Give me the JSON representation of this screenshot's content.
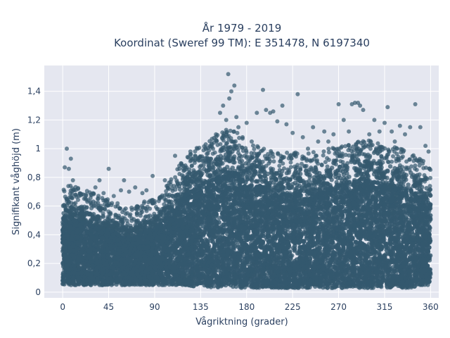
{
  "chart_data": {
    "type": "scatter",
    "title": "År 1979 - 2019",
    "subtitle": "Koordinat (Sweref 99 TM): E 351478, N 6197340",
    "xlabel": "Vågriktning (grader)",
    "ylabel": "Signifikant våghöjd (m)",
    "xlim": [
      -18,
      368
    ],
    "ylim": [
      -0.04,
      1.58
    ],
    "x_ticks": [
      0,
      45,
      90,
      135,
      180,
      225,
      270,
      315,
      360
    ],
    "x_tick_labels": [
      "0",
      "45",
      "90",
      "135",
      "180",
      "225",
      "270",
      "315",
      "360"
    ],
    "y_ticks": [
      0,
      0.2,
      0.4,
      0.6,
      0.8,
      1.0,
      1.2,
      1.4
    ],
    "y_tick_labels": [
      "0",
      "0,2",
      "0,4",
      "0,6",
      "0,8",
      "1",
      "1,2",
      "1,4"
    ],
    "grid": true,
    "colors": {
      "marker": "#34586e",
      "plot_bg": "#e5e7f0",
      "grid": "#ffffff",
      "text": "#2a3f5f"
    },
    "dense_band": {
      "x": [
        0,
        10,
        20,
        30,
        40,
        50,
        60,
        70,
        80,
        90,
        100,
        110,
        120,
        130,
        140,
        150,
        160,
        170,
        180,
        190,
        200,
        210,
        220,
        230,
        240,
        250,
        260,
        270,
        280,
        290,
        300,
        310,
        320,
        330,
        340,
        350,
        360
      ],
      "y_min": [
        0.05,
        0.05,
        0.05,
        0.05,
        0.05,
        0.05,
        0.05,
        0.05,
        0.05,
        0.05,
        0.05,
        0.05,
        0.05,
        0.04,
        0.04,
        0.03,
        0.03,
        0.03,
        0.03,
        0.03,
        0.03,
        0.03,
        0.03,
        0.03,
        0.03,
        0.03,
        0.03,
        0.03,
        0.03,
        0.03,
        0.03,
        0.03,
        0.03,
        0.03,
        0.03,
        0.05,
        0.05
      ],
      "y_max": [
        0.62,
        0.6,
        0.58,
        0.55,
        0.52,
        0.5,
        0.45,
        0.45,
        0.5,
        0.52,
        0.6,
        0.7,
        0.8,
        0.86,
        0.9,
        0.95,
        1.0,
        0.98,
        0.9,
        0.88,
        0.86,
        0.85,
        0.84,
        0.84,
        0.84,
        0.85,
        0.86,
        0.88,
        0.9,
        0.92,
        0.92,
        0.9,
        0.88,
        0.86,
        0.84,
        0.8,
        0.72
      ]
    },
    "outliers": [
      {
        "x": 2,
        "y": 0.87
      },
      {
        "x": 4,
        "y": 1.0
      },
      {
        "x": 6,
        "y": 0.86
      },
      {
        "x": 8,
        "y": 0.93
      },
      {
        "x": 10,
        "y": 0.78
      },
      {
        "x": 15,
        "y": 0.72
      },
      {
        "x": 20,
        "y": 0.68
      },
      {
        "x": 25,
        "y": 0.64
      },
      {
        "x": 32,
        "y": 0.73
      },
      {
        "x": 36,
        "y": 0.78
      },
      {
        "x": 40,
        "y": 0.69
      },
      {
        "x": 45,
        "y": 0.86
      },
      {
        "x": 50,
        "y": 0.67
      },
      {
        "x": 57,
        "y": 0.71
      },
      {
        "x": 60,
        "y": 0.78
      },
      {
        "x": 65,
        "y": 0.7
      },
      {
        "x": 71,
        "y": 0.73
      },
      {
        "x": 78,
        "y": 0.69
      },
      {
        "x": 82,
        "y": 0.71
      },
      {
        "x": 88,
        "y": 0.81
      },
      {
        "x": 95,
        "y": 0.66
      },
      {
        "x": 100,
        "y": 0.78
      },
      {
        "x": 104,
        "y": 0.72
      },
      {
        "x": 110,
        "y": 0.95
      },
      {
        "x": 118,
        "y": 0.88
      },
      {
        "x": 125,
        "y": 0.98
      },
      {
        "x": 132,
        "y": 1.0
      },
      {
        "x": 140,
        "y": 1.03
      },
      {
        "x": 145,
        "y": 0.93
      },
      {
        "x": 150,
        "y": 1.1
      },
      {
        "x": 154,
        "y": 1.25
      },
      {
        "x": 157,
        "y": 1.3
      },
      {
        "x": 160,
        "y": 1.2
      },
      {
        "x": 162,
        "y": 1.52
      },
      {
        "x": 163,
        "y": 1.35
      },
      {
        "x": 165,
        "y": 1.4
      },
      {
        "x": 168,
        "y": 1.44
      },
      {
        "x": 170,
        "y": 1.22
      },
      {
        "x": 172,
        "y": 1.15
      },
      {
        "x": 176,
        "y": 1.08
      },
      {
        "x": 180,
        "y": 1.18
      },
      {
        "x": 185,
        "y": 1.05
      },
      {
        "x": 190,
        "y": 1.25
      },
      {
        "x": 196,
        "y": 1.41
      },
      {
        "x": 199,
        "y": 1.27
      },
      {
        "x": 203,
        "y": 1.25
      },
      {
        "x": 206,
        "y": 1.26
      },
      {
        "x": 210,
        "y": 1.19
      },
      {
        "x": 215,
        "y": 1.3
      },
      {
        "x": 219,
        "y": 1.17
      },
      {
        "x": 225,
        "y": 1.11
      },
      {
        "x": 230,
        "y": 1.38
      },
      {
        "x": 235,
        "y": 1.08
      },
      {
        "x": 240,
        "y": 1.0
      },
      {
        "x": 245,
        "y": 1.15
      },
      {
        "x": 250,
        "y": 1.05
      },
      {
        "x": 256,
        "y": 1.12
      },
      {
        "x": 260,
        "y": 1.05
      },
      {
        "x": 265,
        "y": 1.1
      },
      {
        "x": 270,
        "y": 1.31
      },
      {
        "x": 275,
        "y": 1.2
      },
      {
        "x": 280,
        "y": 1.12
      },
      {
        "x": 283,
        "y": 1.31
      },
      {
        "x": 286,
        "y": 1.32
      },
      {
        "x": 289,
        "y": 1.32
      },
      {
        "x": 291,
        "y": 1.3
      },
      {
        "x": 294,
        "y": 1.27
      },
      {
        "x": 300,
        "y": 1.1
      },
      {
        "x": 305,
        "y": 1.2
      },
      {
        "x": 310,
        "y": 1.12
      },
      {
        "x": 315,
        "y": 1.18
      },
      {
        "x": 318,
        "y": 1.29
      },
      {
        "x": 322,
        "y": 1.12
      },
      {
        "x": 325,
        "y": 1.05
      },
      {
        "x": 330,
        "y": 1.16
      },
      {
        "x": 335,
        "y": 1.1
      },
      {
        "x": 340,
        "y": 1.15
      },
      {
        "x": 345,
        "y": 1.31
      },
      {
        "x": 350,
        "y": 1.15
      },
      {
        "x": 355,
        "y": 1.02
      },
      {
        "x": 358,
        "y": 0.98
      }
    ]
  }
}
